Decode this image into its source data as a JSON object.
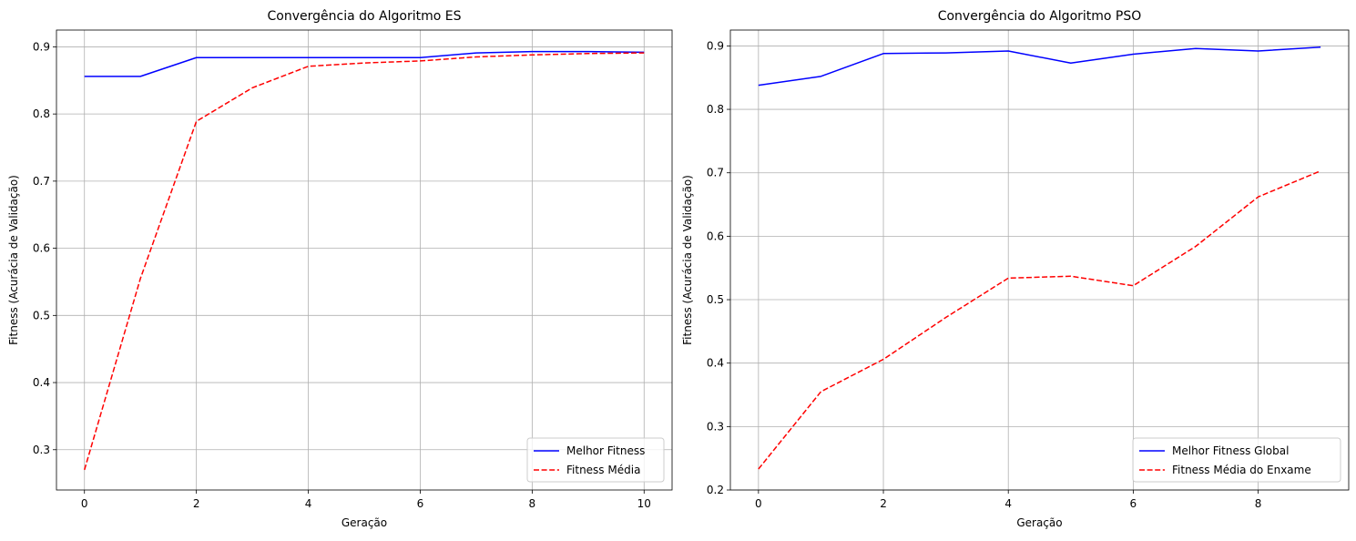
{
  "chart_data": [
    {
      "type": "line",
      "title": "Convergência do Algoritmo ES",
      "xlabel": "Geração",
      "ylabel": "Fitness (Acurácia de Validação)",
      "xlim": [
        -0.5,
        10.5
      ],
      "ylim": [
        0.24,
        0.925
      ],
      "xticks": [
        0,
        2,
        4,
        6,
        8,
        10
      ],
      "yticks": [
        0.3,
        0.4,
        0.5,
        0.6,
        0.7,
        0.8,
        0.9
      ],
      "grid": true,
      "legend_position": "lower-right",
      "x": [
        0,
        1,
        2,
        3,
        4,
        5,
        6,
        7,
        8,
        9,
        10
      ],
      "series": [
        {
          "name": "Melhor Fitness",
          "color": "#0000ff",
          "style": "solid",
          "values": [
            0.856,
            0.856,
            0.884,
            0.884,
            0.884,
            0.884,
            0.884,
            0.891,
            0.893,
            0.893,
            0.892
          ]
        },
        {
          "name": "Fitness Média",
          "color": "#ff0000",
          "style": "dashed",
          "values": [
            0.27,
            0.555,
            0.789,
            0.839,
            0.871,
            0.876,
            0.879,
            0.885,
            0.888,
            0.89,
            0.891
          ]
        }
      ]
    },
    {
      "type": "line",
      "title": "Convergência do Algoritmo PSO",
      "xlabel": "Geração",
      "ylabel": "Fitness (Acurácia de Validação)",
      "xlim": [
        -0.45,
        9.45
      ],
      "ylim": [
        0.2,
        0.925
      ],
      "xticks": [
        0,
        2,
        4,
        6,
        8
      ],
      "yticks": [
        0.2,
        0.3,
        0.4,
        0.5,
        0.6,
        0.7,
        0.8,
        0.9
      ],
      "grid": true,
      "legend_position": "lower-right",
      "x": [
        0,
        1,
        2,
        3,
        4,
        5,
        6,
        7,
        8,
        9
      ],
      "series": [
        {
          "name": "Melhor Fitness Global",
          "color": "#0000ff",
          "style": "solid",
          "values": [
            0.838,
            0.852,
            0.888,
            0.889,
            0.892,
            0.873,
            0.887,
            0.896,
            0.892,
            0.898
          ]
        },
        {
          "name": "Fitness Média do Enxame",
          "color": "#ff0000",
          "style": "dashed",
          "values": [
            0.233,
            0.355,
            0.406,
            0.472,
            0.534,
            0.537,
            0.522,
            0.584,
            0.662,
            0.703
          ]
        }
      ]
    }
  ]
}
